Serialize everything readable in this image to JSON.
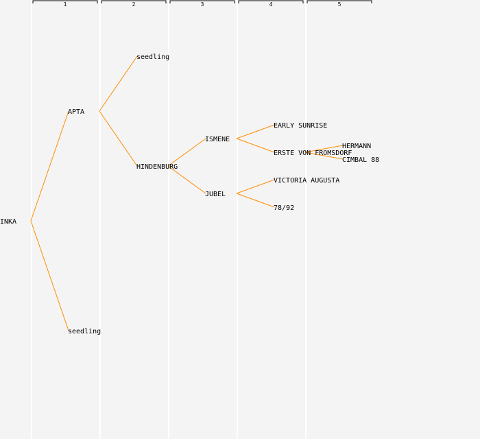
{
  "generations": [
    "1",
    "2",
    "3",
    "4",
    "5"
  ],
  "colors": {
    "link": "#ff8c00",
    "column_divider": "#ffffff",
    "background": "#f4f4f4"
  },
  "nodes": [
    {
      "id": "n0",
      "label": "INKA",
      "gen": 0,
      "row": 16
    },
    {
      "id": "n1",
      "label": "APTA",
      "gen": 1,
      "row": 8,
      "parent": "n0"
    },
    {
      "id": "n2",
      "label": "seedling",
      "gen": 1,
      "row": 24,
      "parent": "n0"
    },
    {
      "id": "n3",
      "label": "seedling",
      "gen": 2,
      "row": 4,
      "parent": "n1"
    },
    {
      "id": "n4",
      "label": "HINDENBURG",
      "gen": 2,
      "row": 12,
      "parent": "n1"
    },
    {
      "id": "n5",
      "label": "ISMENE",
      "gen": 3,
      "row": 10,
      "parent": "n4"
    },
    {
      "id": "n6",
      "label": "JUBEL",
      "gen": 3,
      "row": 14,
      "parent": "n4"
    },
    {
      "id": "n7",
      "label": "EARLY SUNRISE",
      "gen": 4,
      "row": 9,
      "parent": "n5"
    },
    {
      "id": "n8",
      "label": "ERSTE VON FROMSDORF",
      "gen": 4,
      "row": 11,
      "parent": "n5"
    },
    {
      "id": "n9",
      "label": "VICTORIA AUGUSTA",
      "gen": 4,
      "row": 13,
      "parent": "n6"
    },
    {
      "id": "n10",
      "label": "78/92",
      "gen": 4,
      "row": 15,
      "parent": "n6"
    },
    {
      "id": "n11",
      "label": "HERMANN",
      "gen": 5,
      "row": 10.5,
      "parent": "n8"
    },
    {
      "id": "n12",
      "label": "CIMBAL 88",
      "gen": 5,
      "row": 11.5,
      "parent": "n8"
    }
  ]
}
